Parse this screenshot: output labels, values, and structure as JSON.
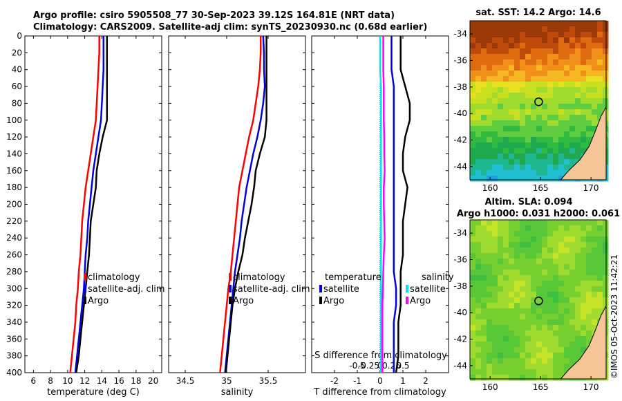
{
  "title": {
    "line1": "Argo profile: csiro 5905508_77 30-Sep-2023 39.12S 164.81E (NRT data)",
    "line2": "Climatology: CARS2009. Satellite-adj clim: synTS_20230930.nc (0.68d earlier)"
  },
  "timestamp": "©IMOS 05-Oct-2023 11:42:21",
  "colors": {
    "climatology": "#ff0000",
    "satellite": "#0000dd",
    "argo": "#000000",
    "salinity_satellite": "#00e5e5",
    "salinity_argo": "#ff00ff",
    "land": "#f5c597"
  },
  "chart_data": [
    {
      "id": "temperature",
      "type": "line",
      "xlabel": "temperature (deg C)",
      "ylabel": "depth",
      "xlim": [
        5,
        21
      ],
      "ylim": [
        400,
        0
      ],
      "xticks": [
        6,
        8,
        10,
        12,
        14,
        16,
        18,
        20
      ],
      "yticks": [
        0,
        20,
        40,
        60,
        80,
        100,
        120,
        140,
        160,
        180,
        200,
        220,
        240,
        260,
        280,
        300,
        320,
        340,
        360,
        380,
        400
      ],
      "legend": [
        "climatology",
        "satellite-adj. clim",
        "Argo"
      ],
      "series": [
        {
          "name": "climatology",
          "points": [
            [
              13.7,
              0
            ],
            [
              13.7,
              20
            ],
            [
              13.6,
              40
            ],
            [
              13.5,
              60
            ],
            [
              13.4,
              80
            ],
            [
              13.3,
              100
            ],
            [
              13.0,
              120
            ],
            [
              12.7,
              140
            ],
            [
              12.4,
              160
            ],
            [
              12.1,
              180
            ],
            [
              11.9,
              200
            ],
            [
              11.7,
              220
            ],
            [
              11.6,
              240
            ],
            [
              11.5,
              260
            ],
            [
              11.3,
              280
            ],
            [
              11.2,
              300
            ],
            [
              11.0,
              320
            ],
            [
              10.9,
              340
            ],
            [
              10.7,
              360
            ],
            [
              10.5,
              380
            ],
            [
              10.3,
              400
            ]
          ]
        },
        {
          "name": "satellite-adj. clim",
          "points": [
            [
              14.2,
              0
            ],
            [
              14.2,
              20
            ],
            [
              14.2,
              40
            ],
            [
              14.1,
              60
            ],
            [
              14.0,
              80
            ],
            [
              13.9,
              100
            ],
            [
              13.6,
              120
            ],
            [
              13.3,
              140
            ],
            [
              13.0,
              160
            ],
            [
              12.8,
              180
            ],
            [
              12.6,
              200
            ],
            [
              12.4,
              220
            ],
            [
              12.3,
              240
            ],
            [
              12.1,
              260
            ],
            [
              12.0,
              280
            ],
            [
              11.9,
              300
            ],
            [
              11.7,
              320
            ],
            [
              11.5,
              340
            ],
            [
              11.3,
              360
            ],
            [
              11.1,
              380
            ],
            [
              10.9,
              400
            ]
          ]
        },
        {
          "name": "Argo",
          "points": [
            [
              14.6,
              0
            ],
            [
              14.6,
              20
            ],
            [
              14.6,
              40
            ],
            [
              14.6,
              60
            ],
            [
              14.6,
              80
            ],
            [
              14.6,
              100
            ],
            [
              14.1,
              120
            ],
            [
              13.7,
              140
            ],
            [
              13.4,
              160
            ],
            [
              13.3,
              180
            ],
            [
              13.0,
              200
            ],
            [
              12.7,
              220
            ],
            [
              12.6,
              240
            ],
            [
              12.5,
              260
            ],
            [
              12.3,
              280
            ],
            [
              12.1,
              300
            ],
            [
              11.9,
              320
            ],
            [
              11.7,
              340
            ],
            [
              11.5,
              360
            ],
            [
              11.3,
              380
            ],
            [
              11.0,
              400
            ]
          ]
        }
      ]
    },
    {
      "id": "salinity",
      "type": "line",
      "xlabel": "salinity",
      "ylabel": "depth",
      "xlim": [
        34.3,
        35.95
      ],
      "ylim": [
        400,
        0
      ],
      "xticks": [
        34.5,
        35,
        35.5
      ],
      "xticklabels": [
        "34.5",
        "35",
        "35.5"
      ],
      "legend": [
        "climatology",
        "satellite-adj. clim",
        "Argo"
      ],
      "series": [
        {
          "name": "climatology",
          "points": [
            [
              35.41,
              0
            ],
            [
              35.41,
              20
            ],
            [
              35.4,
              40
            ],
            [
              35.38,
              60
            ],
            [
              35.35,
              80
            ],
            [
              35.32,
              100
            ],
            [
              35.27,
              120
            ],
            [
              35.23,
              140
            ],
            [
              35.19,
              160
            ],
            [
              35.15,
              180
            ],
            [
              35.13,
              200
            ],
            [
              35.11,
              220
            ],
            [
              35.09,
              240
            ],
            [
              35.07,
              260
            ],
            [
              35.05,
              280
            ],
            [
              35.02,
              300
            ],
            [
              35.0,
              320
            ],
            [
              34.98,
              340
            ],
            [
              34.96,
              360
            ],
            [
              34.94,
              380
            ],
            [
              34.92,
              400
            ]
          ]
        },
        {
          "name": "satellite-adj. clim",
          "points": [
            [
              35.44,
              0
            ],
            [
              35.45,
              20
            ],
            [
              35.45,
              40
            ],
            [
              35.46,
              60
            ],
            [
              35.44,
              80
            ],
            [
              35.41,
              100
            ],
            [
              35.37,
              120
            ],
            [
              35.32,
              140
            ],
            [
              35.28,
              160
            ],
            [
              35.24,
              180
            ],
            [
              35.21,
              200
            ],
            [
              35.18,
              220
            ],
            [
              35.16,
              240
            ],
            [
              35.13,
              260
            ],
            [
              35.1,
              280
            ],
            [
              35.08,
              300
            ],
            [
              35.06,
              320
            ],
            [
              35.04,
              340
            ],
            [
              35.02,
              360
            ],
            [
              35.0,
              380
            ],
            [
              34.98,
              400
            ]
          ]
        },
        {
          "name": "Argo",
          "points": [
            [
              35.48,
              0
            ],
            [
              35.48,
              20
            ],
            [
              35.48,
              40
            ],
            [
              35.48,
              60
            ],
            [
              35.48,
              80
            ],
            [
              35.48,
              100
            ],
            [
              35.46,
              120
            ],
            [
              35.4,
              140
            ],
            [
              35.35,
              160
            ],
            [
              35.33,
              180
            ],
            [
              35.3,
              200
            ],
            [
              35.26,
              220
            ],
            [
              35.22,
              240
            ],
            [
              35.19,
              260
            ],
            [
              35.14,
              280
            ],
            [
              35.1,
              300
            ],
            [
              35.07,
              320
            ],
            [
              35.05,
              340
            ],
            [
              35.03,
              360
            ],
            [
              35.01,
              380
            ],
            [
              34.99,
              400
            ]
          ]
        }
      ]
    },
    {
      "id": "difference",
      "type": "line",
      "xlabel": "T difference from climatology",
      "secondary_xlabel": "S difference from climatology",
      "ylabel": "depth",
      "xlim": [
        -3,
        3
      ],
      "ylim": [
        400,
        0
      ],
      "xticks": [
        -2,
        -1,
        0,
        1,
        2
      ],
      "secondary_xticks": [
        -0.5,
        -0.25,
        0,
        0.25,
        0.5
      ],
      "secondary_xticklabels": [
        "-0.5",
        "-0.25",
        "0",
        "0.25",
        "0.5"
      ],
      "legend_temperature": {
        "title": "temperature",
        "items": [
          "satellite",
          "Argo"
        ]
      },
      "legend_salinity": {
        "title": "salinity",
        "items": [
          "satellite",
          "Argo"
        ]
      },
      "series": [
        {
          "name": "temperature satellite",
          "points": [
            [
              0.5,
              0
            ],
            [
              0.5,
              20
            ],
            [
              0.5,
              40
            ],
            [
              0.6,
              60
            ],
            [
              0.6,
              80
            ],
            [
              0.6,
              100
            ],
            [
              0.6,
              120
            ],
            [
              0.6,
              140
            ],
            [
              0.6,
              160
            ],
            [
              0.6,
              180
            ],
            [
              0.6,
              200
            ],
            [
              0.6,
              220
            ],
            [
              0.6,
              240
            ],
            [
              0.6,
              260
            ],
            [
              0.6,
              280
            ],
            [
              0.7,
              300
            ],
            [
              0.7,
              320
            ],
            [
              0.6,
              340
            ],
            [
              0.6,
              360
            ],
            [
              0.6,
              380
            ],
            [
              0.6,
              400
            ]
          ]
        },
        {
          "name": "temperature Argo",
          "points": [
            [
              0.9,
              0
            ],
            [
              0.9,
              20
            ],
            [
              0.9,
              40
            ],
            [
              1.1,
              60
            ],
            [
              1.3,
              80
            ],
            [
              1.3,
              100
            ],
            [
              1.1,
              120
            ],
            [
              1.0,
              140
            ],
            [
              1.0,
              160
            ],
            [
              1.2,
              180
            ],
            [
              1.1,
              200
            ],
            [
              1.0,
              220
            ],
            [
              1.0,
              240
            ],
            [
              1.0,
              260
            ],
            [
              0.9,
              280
            ],
            [
              0.9,
              300
            ],
            [
              0.9,
              320
            ],
            [
              0.8,
              340
            ],
            [
              0.8,
              360
            ],
            [
              0.8,
              380
            ],
            [
              0.7,
              400
            ]
          ]
        },
        {
          "name": "salinity satellite",
          "points": [
            [
              0.0,
              0
            ],
            [
              0.0,
              20
            ],
            [
              0.0,
              40
            ],
            [
              0.02,
              60
            ],
            [
              0.02,
              80
            ],
            [
              0.02,
              100
            ],
            [
              0.02,
              120
            ],
            [
              0.02,
              140
            ],
            [
              0.02,
              160
            ],
            [
              0.02,
              180
            ],
            [
              0.02,
              200
            ],
            [
              0.02,
              220
            ],
            [
              0.02,
              240
            ],
            [
              0.02,
              260
            ],
            [
              0.02,
              280
            ],
            [
              0.02,
              300
            ],
            [
              0.02,
              320
            ],
            [
              0.02,
              340
            ],
            [
              0.02,
              360
            ],
            [
              0.02,
              380
            ],
            [
              0.02,
              400
            ]
          ]
        },
        {
          "name": "salinity Argo",
          "points": [
            [
              0.07,
              0
            ],
            [
              0.07,
              20
            ],
            [
              0.07,
              40
            ],
            [
              0.08,
              60
            ],
            [
              0.08,
              80
            ],
            [
              0.08,
              100
            ],
            [
              0.09,
              120
            ],
            [
              0.09,
              140
            ],
            [
              0.1,
              160
            ],
            [
              0.08,
              180
            ],
            [
              0.08,
              200
            ],
            [
              0.09,
              220
            ],
            [
              0.1,
              240
            ],
            [
              0.08,
              260
            ],
            [
              0.07,
              280
            ],
            [
              0.06,
              300
            ],
            [
              0.05,
              320
            ],
            [
              0.05,
              340
            ],
            [
              0.05,
              360
            ],
            [
              0.05,
              380
            ],
            [
              0.05,
              400
            ]
          ]
        }
      ]
    },
    {
      "id": "sst_map",
      "type": "heatmap",
      "title": "sat. SST: 14.2 Argo: 14.6",
      "xlim": [
        158,
        171.5
      ],
      "ylim": [
        -45,
        -33
      ],
      "xticks": [
        160,
        165,
        170
      ],
      "yticks": [
        -34,
        -36,
        -38,
        -40,
        -42,
        -44
      ],
      "argo_position": {
        "lon": 164.81,
        "lat": -39.12
      }
    },
    {
      "id": "sla_map",
      "type": "heatmap",
      "title": "Altim. SLA: 0.094",
      "subtitle": "Argo h1000: 0.031 h2000: 0.061",
      "xlim": [
        158,
        171.5
      ],
      "ylim": [
        -45,
        -33
      ],
      "xticks": [
        160,
        165,
        170
      ],
      "yticks": [
        -34,
        -36,
        -38,
        -40,
        -42,
        -44
      ],
      "argo_position": {
        "lon": 164.81,
        "lat": -39.12
      }
    }
  ]
}
